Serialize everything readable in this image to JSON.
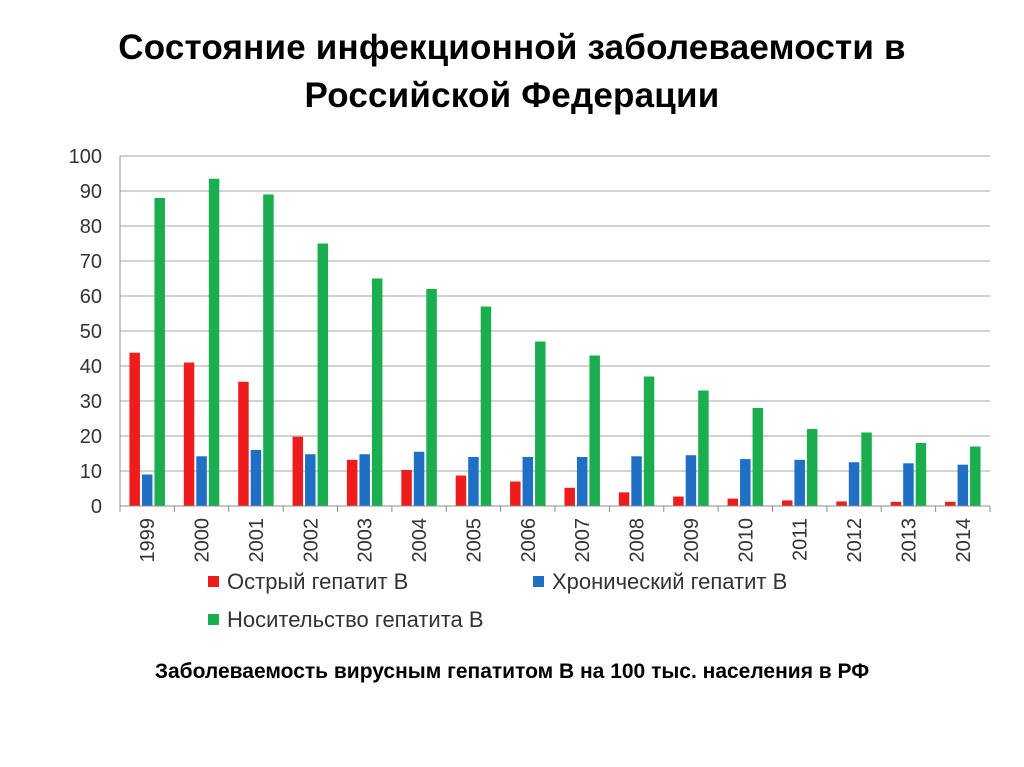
{
  "slide": {
    "title": "Состояние инфекционной заболеваемости в\nРоссийской Федерации",
    "caption": "Заболеваемость вирусным гепатитом В на 100 тыс. населения в РФ"
  },
  "chart_data": {
    "type": "bar",
    "title": "",
    "xlabel": "",
    "ylabel": "",
    "ylim": [
      0,
      100
    ],
    "yticks": [
      0,
      10,
      20,
      30,
      40,
      50,
      60,
      70,
      80,
      90,
      100
    ],
    "grid": true,
    "legend_placement": "bottom",
    "categories": [
      "1999",
      "2000",
      "2001",
      "2002",
      "2003",
      "2004",
      "2005",
      "2006",
      "2007",
      "2008",
      "2009",
      "2010",
      "2011",
      "2012",
      "2013",
      "2014"
    ],
    "series": [
      {
        "name": "Острый гепатит В",
        "color": "#ee1c1c",
        "values": [
          43.8,
          41,
          35.5,
          19.8,
          13.2,
          10.3,
          8.7,
          7,
          5.2,
          3.9,
          2.7,
          2.1,
          1.6,
          1.3,
          1.2,
          1.2
        ]
      },
      {
        "name": "Хронический гепатит В",
        "color": "#1f6fc4",
        "values": [
          9,
          14.2,
          16,
          14.8,
          14.8,
          15.5,
          14,
          14,
          14,
          14.2,
          14.5,
          13.4,
          13.2,
          12.5,
          12.2,
          11.8
        ]
      },
      {
        "name": "Носительство гепатита В",
        "color": "#1aae4e",
        "values": [
          88,
          93.5,
          89,
          75,
          65,
          62,
          57,
          47,
          43,
          37,
          33,
          28,
          22,
          21,
          18,
          17
        ]
      }
    ]
  }
}
